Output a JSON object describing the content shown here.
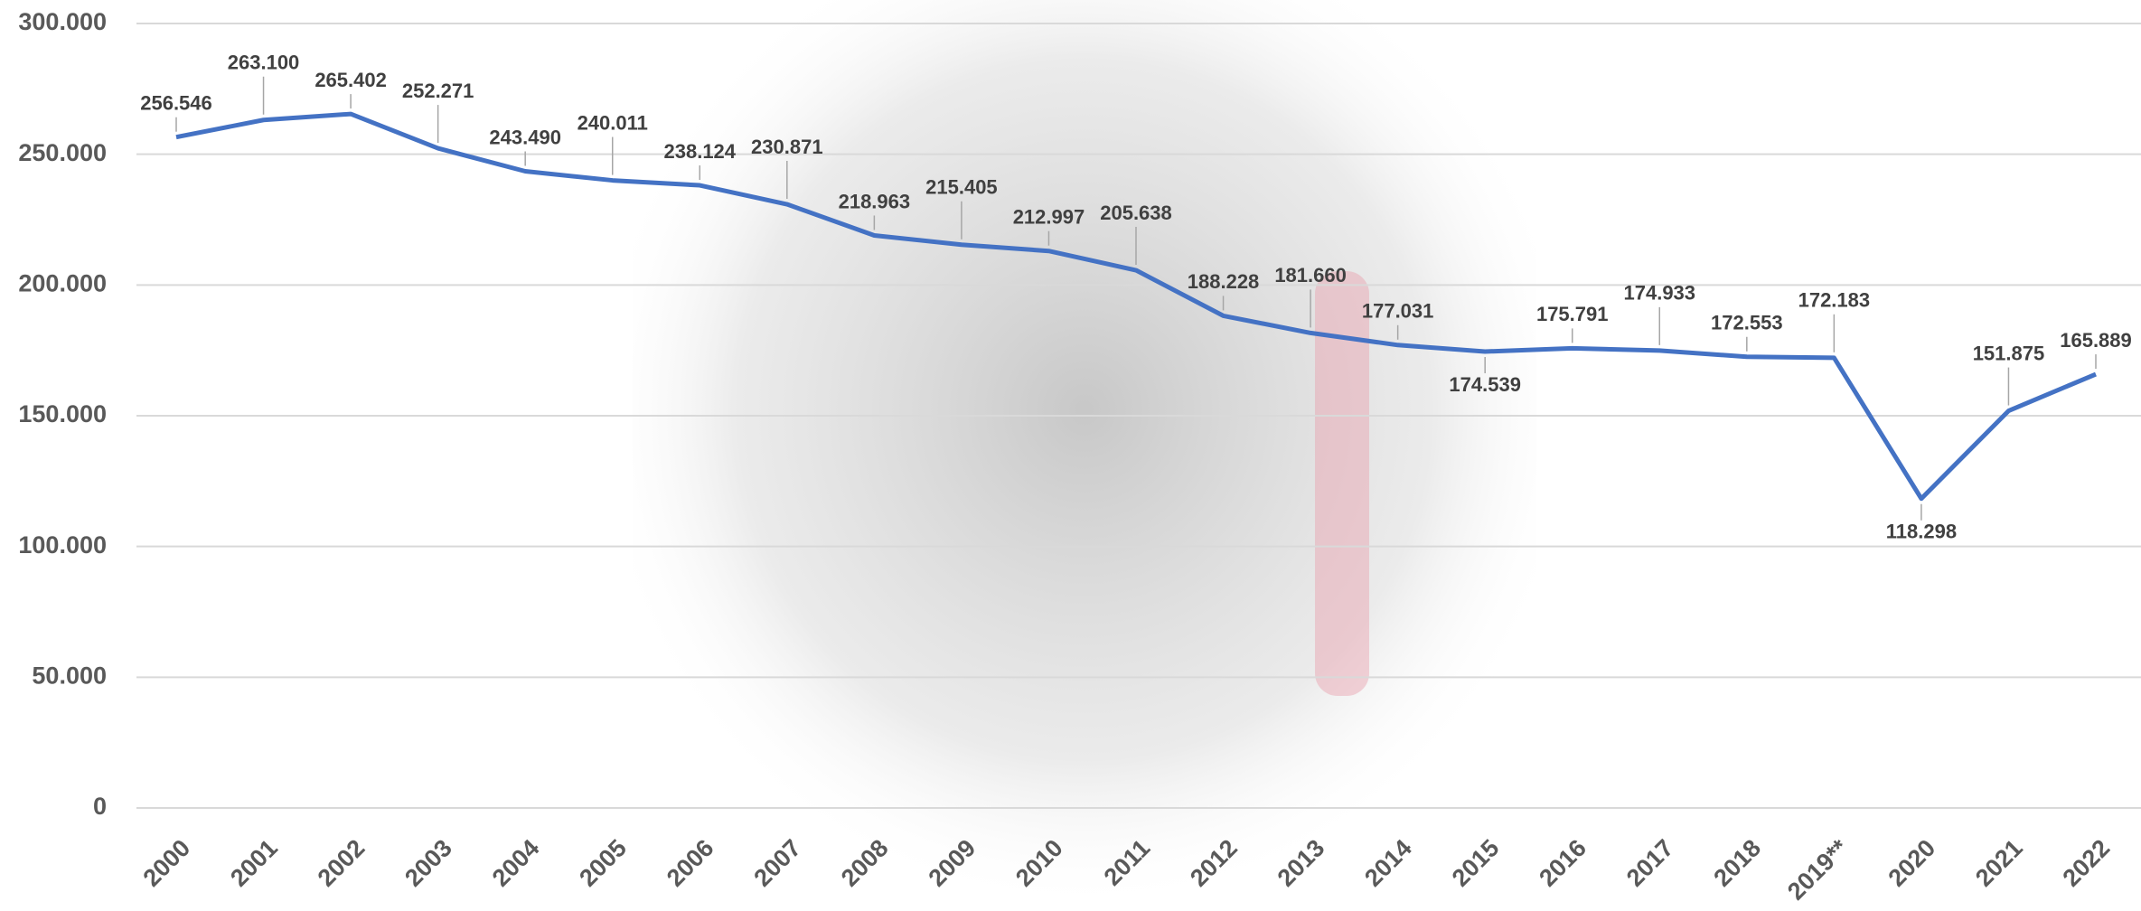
{
  "chart_data": {
    "type": "line",
    "categories": [
      "2000",
      "2001",
      "2002",
      "2003",
      "2004",
      "2005",
      "2006",
      "2007",
      "2008",
      "2009",
      "2010",
      "2011",
      "2012",
      "2013",
      "2014",
      "2015",
      "2016",
      "2017",
      "2018",
      "2019**",
      "2020",
      "2021",
      "2022"
    ],
    "values": [
      256546,
      263100,
      265402,
      252271,
      243490,
      240011,
      238124,
      230871,
      218963,
      215405,
      212997,
      205638,
      188228,
      181660,
      177031,
      174539,
      175791,
      174933,
      172553,
      172183,
      118298,
      151875,
      165889
    ],
    "value_labels": [
      "256.546",
      "263.100",
      "265.402",
      "252.271",
      "243.490",
      "240.011",
      "238.124",
      "230.871",
      "218.963",
      "215.405",
      "212.997",
      "205.638",
      "188.228",
      "181.660",
      "177.031",
      "174.539",
      "175.791",
      "174.933",
      "172.553",
      "172.183",
      "118.298",
      "151.875",
      "165.889"
    ],
    "color": "#4472c4",
    "ylim": [
      0,
      300000
    ],
    "yticks": [
      0,
      {
        "value": 50000,
        "label": "50.000"
      },
      {
        "value": 100000,
        "label": "100.000"
      },
      {
        "value": 150000,
        "label": "150.000"
      },
      {
        "value": 200000,
        "label": "200.000"
      },
      {
        "value": 250000,
        "label": "250.000"
      },
      {
        "value": 300000,
        "label": "300.000"
      }
    ],
    "grid": true
  }
}
